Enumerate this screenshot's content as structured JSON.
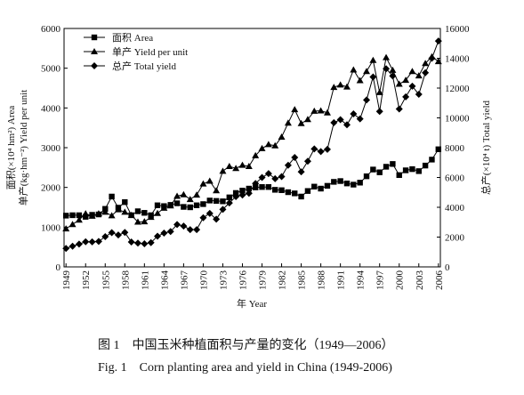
{
  "chart_data": {
    "type": "line",
    "ylabel": "面积(×10⁴ hm²) Area",
    "ylabel2": "单产(kg·hm⁻²) Yield per unit",
    "y2label": "总产(×10⁴ t) Total yield",
    "xlabel": "年 Year",
    "caption_cn": "图 1　中国玉米种植面积与产量的变化（1949—2006）",
    "caption_en": "Fig. 1　Corn planting area and yield in China (1949-2006)",
    "x": [
      1949,
      1950,
      1951,
      1952,
      1953,
      1954,
      1955,
      1956,
      1957,
      1958,
      1959,
      1960,
      1961,
      1962,
      1963,
      1964,
      1965,
      1966,
      1967,
      1968,
      1969,
      1970,
      1971,
      1972,
      1973,
      1974,
      1975,
      1976,
      1977,
      1978,
      1979,
      1980,
      1981,
      1982,
      1983,
      1984,
      1985,
      1986,
      1987,
      1988,
      1989,
      1990,
      1991,
      1992,
      1993,
      1994,
      1995,
      1996,
      1997,
      1998,
      1999,
      2000,
      2001,
      2002,
      2003,
      2004,
      2005,
      2006
    ],
    "xlim": [
      1948.7,
      2006.3
    ],
    "xticks": [
      1949,
      1952,
      1955,
      1958,
      1961,
      1964,
      1967,
      1970,
      1973,
      1976,
      1979,
      1982,
      1985,
      1988,
      1991,
      1994,
      1997,
      2000,
      2003,
      2006
    ],
    "ylim": [
      0,
      6000
    ],
    "yticks": [
      0,
      1000,
      2000,
      3000,
      4000,
      5000,
      6000
    ],
    "y2lim": [
      0,
      16000
    ],
    "y2ticks": [
      0,
      2000,
      4000,
      6000,
      8000,
      10000,
      12000,
      14000,
      16000
    ],
    "legend": "upper left",
    "series": [
      {
        "name": "面积 Area",
        "color": "#000000",
        "marker": "square",
        "values": [
          1290,
          1300,
          1300,
          1260,
          1310,
          1320,
          1460,
          1770,
          1490,
          1630,
          1300,
          1400,
          1360,
          1300,
          1550,
          1530,
          1560,
          1600,
          1510,
          1500,
          1550,
          1580,
          1670,
          1660,
          1650,
          1750,
          1860,
          1920,
          1970,
          2000,
          2010,
          2010,
          1940,
          1930,
          1880,
          1850,
          1770,
          1910,
          2020,
          1970,
          2040,
          2140,
          2160,
          2100,
          2070,
          2120,
          2280,
          2450,
          2380,
          2520,
          2590,
          2310,
          2430,
          2460,
          2410,
          2550,
          2700,
          2960
        ]
      },
      {
        "name": "单产 Yield per unit",
        "color": "#000000",
        "marker": "triangle",
        "values": [
          960,
          1070,
          1180,
          1340,
          1280,
          1340,
          1380,
          1290,
          1440,
          1380,
          1300,
          1130,
          1140,
          1250,
          1350,
          1480,
          1540,
          1780,
          1820,
          1700,
          1810,
          2090,
          2160,
          1920,
          2410,
          2530,
          2480,
          2560,
          2530,
          2800,
          2980,
          3080,
          3050,
          3270,
          3620,
          3960,
          3610,
          3710,
          3920,
          3930,
          3880,
          4520,
          4580,
          4530,
          4960,
          4690,
          4920,
          5200,
          4390,
          5270,
          4950,
          4600,
          4700,
          4920,
          4810,
          5120,
          5290,
          5170
        ]
      },
      {
        "name": "总产 Total yield",
        "color": "#000000",
        "marker": "diamond",
        "axis": "y2",
        "values": [
          1240,
          1390,
          1530,
          1690,
          1680,
          1710,
          2030,
          2300,
          2140,
          2310,
          1670,
          1600,
          1550,
          1630,
          2060,
          2270,
          2370,
          2840,
          2740,
          2500,
          2500,
          3300,
          3590,
          3200,
          3860,
          4290,
          4720,
          4820,
          4940,
          5600,
          6000,
          6260,
          5920,
          6060,
          6820,
          7340,
          6380,
          7090,
          7920,
          7740,
          7890,
          9680,
          9880,
          9540,
          10270,
          9930,
          11200,
          12750,
          10430,
          13300,
          12810,
          10600,
          11410,
          12130,
          11580,
          13030,
          14000,
          15160
        ]
      }
    ]
  }
}
